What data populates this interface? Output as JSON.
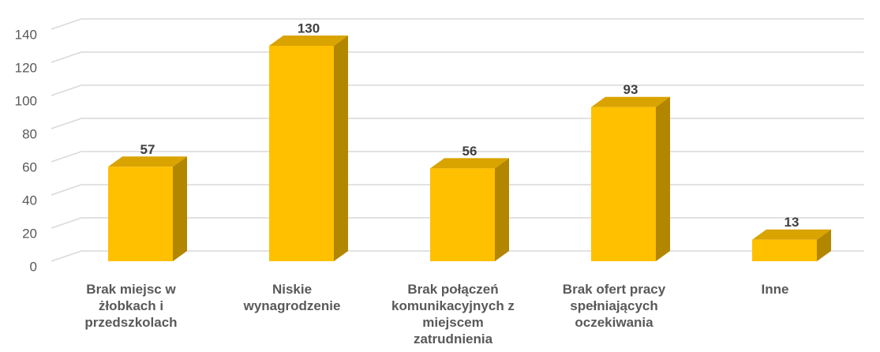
{
  "chart_data": {
    "type": "bar3d",
    "categories": [
      "Brak miejsc w żłobkach i przedszkolach",
      "Niskie wynagrodzenie",
      "Brak połączeń komunikacyjnych z miejscem zatrudnienia",
      "Brak ofert pracy spełniających oczekiwania",
      "Inne"
    ],
    "values": [
      57,
      130,
      56,
      93,
      13
    ],
    "color": "#ffc000",
    "ylim": [
      0,
      140
    ],
    "yticks": [
      0,
      20,
      40,
      60,
      80,
      100,
      120,
      140
    ],
    "grid": true
  }
}
